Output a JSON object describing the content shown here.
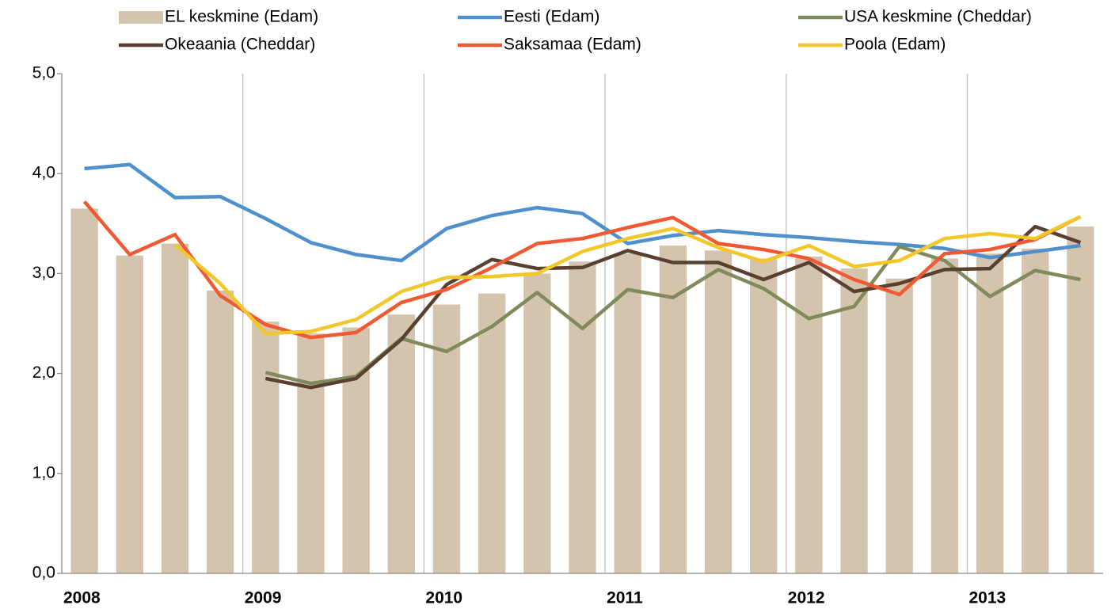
{
  "chart_data": {
    "type": "combo",
    "categories": [
      "2008",
      null,
      null,
      null,
      "2009",
      null,
      null,
      null,
      "2010",
      null,
      null,
      null,
      "2011",
      null,
      null,
      null,
      "2012",
      null,
      null,
      null,
      "2013",
      null,
      null
    ],
    "ylim": [
      0,
      5
    ],
    "yticks": [
      {
        "value": 0,
        "label": "0,0"
      },
      {
        "value": 1,
        "label": "1,0"
      },
      {
        "value": 2,
        "label": "2,0"
      },
      {
        "value": 3,
        "label": "3,0"
      },
      {
        "value": 4,
        "label": "4,0"
      },
      {
        "value": 5,
        "label": "5,0"
      }
    ],
    "series": [
      {
        "name": "EL keskmine (Edam)",
        "type": "bar",
        "color": "#d5c4ad",
        "values": [
          3.65,
          3.18,
          3.3,
          2.83,
          2.52,
          2.4,
          2.46,
          2.59,
          2.69,
          2.8,
          3.0,
          3.12,
          3.2,
          3.28,
          3.23,
          3.15,
          3.17,
          3.05,
          2.95,
          3.15,
          3.2,
          3.25,
          3.47
        ]
      },
      {
        "name": "Eesti (Edam)",
        "type": "line",
        "color": "#4f90cc",
        "values": [
          4.05,
          4.09,
          3.76,
          3.77,
          3.55,
          3.31,
          3.19,
          3.13,
          3.45,
          3.58,
          3.66,
          3.6,
          3.3,
          3.38,
          3.43,
          3.39,
          3.36,
          3.32,
          3.29,
          3.25,
          3.16,
          3.22,
          3.28
        ]
      },
      {
        "name": "USA keskmine (Cheddar)",
        "type": "line",
        "color": "#7f8b5a",
        "values": [
          null,
          null,
          null,
          null,
          2.01,
          1.9,
          1.97,
          2.35,
          2.22,
          2.47,
          2.81,
          2.45,
          2.84,
          2.76,
          3.04,
          2.85,
          2.55,
          2.67,
          3.27,
          3.13,
          2.77,
          3.03,
          2.94
        ]
      },
      {
        "name": "Okeaania (Cheddar)",
        "type": "line",
        "color": "#5a4031",
        "values": [
          null,
          null,
          null,
          null,
          1.95,
          1.86,
          1.95,
          2.34,
          2.89,
          3.14,
          3.05,
          3.06,
          3.23,
          3.11,
          3.11,
          2.94,
          3.11,
          2.82,
          2.9,
          3.04,
          3.05,
          3.47,
          3.31
        ]
      },
      {
        "name": "Saksamaa (Edam)",
        "type": "line",
        "color": "#f05a32",
        "values": [
          3.72,
          3.19,
          3.39,
          2.78,
          2.49,
          2.36,
          2.41,
          2.71,
          2.84,
          3.06,
          3.3,
          3.35,
          3.46,
          3.56,
          3.3,
          3.24,
          3.15,
          2.94,
          2.79,
          3.2,
          3.24,
          3.34,
          3.57
        ]
      },
      {
        "name": "Poola (Edam)",
        "type": "line",
        "color": "#f2c72a",
        "values": [
          null,
          null,
          3.29,
          2.9,
          2.4,
          2.42,
          2.54,
          2.82,
          2.96,
          2.97,
          3.0,
          3.22,
          3.35,
          3.45,
          3.26,
          3.12,
          3.28,
          3.07,
          3.13,
          3.35,
          3.4,
          3.35,
          3.57
        ]
      }
    ]
  }
}
